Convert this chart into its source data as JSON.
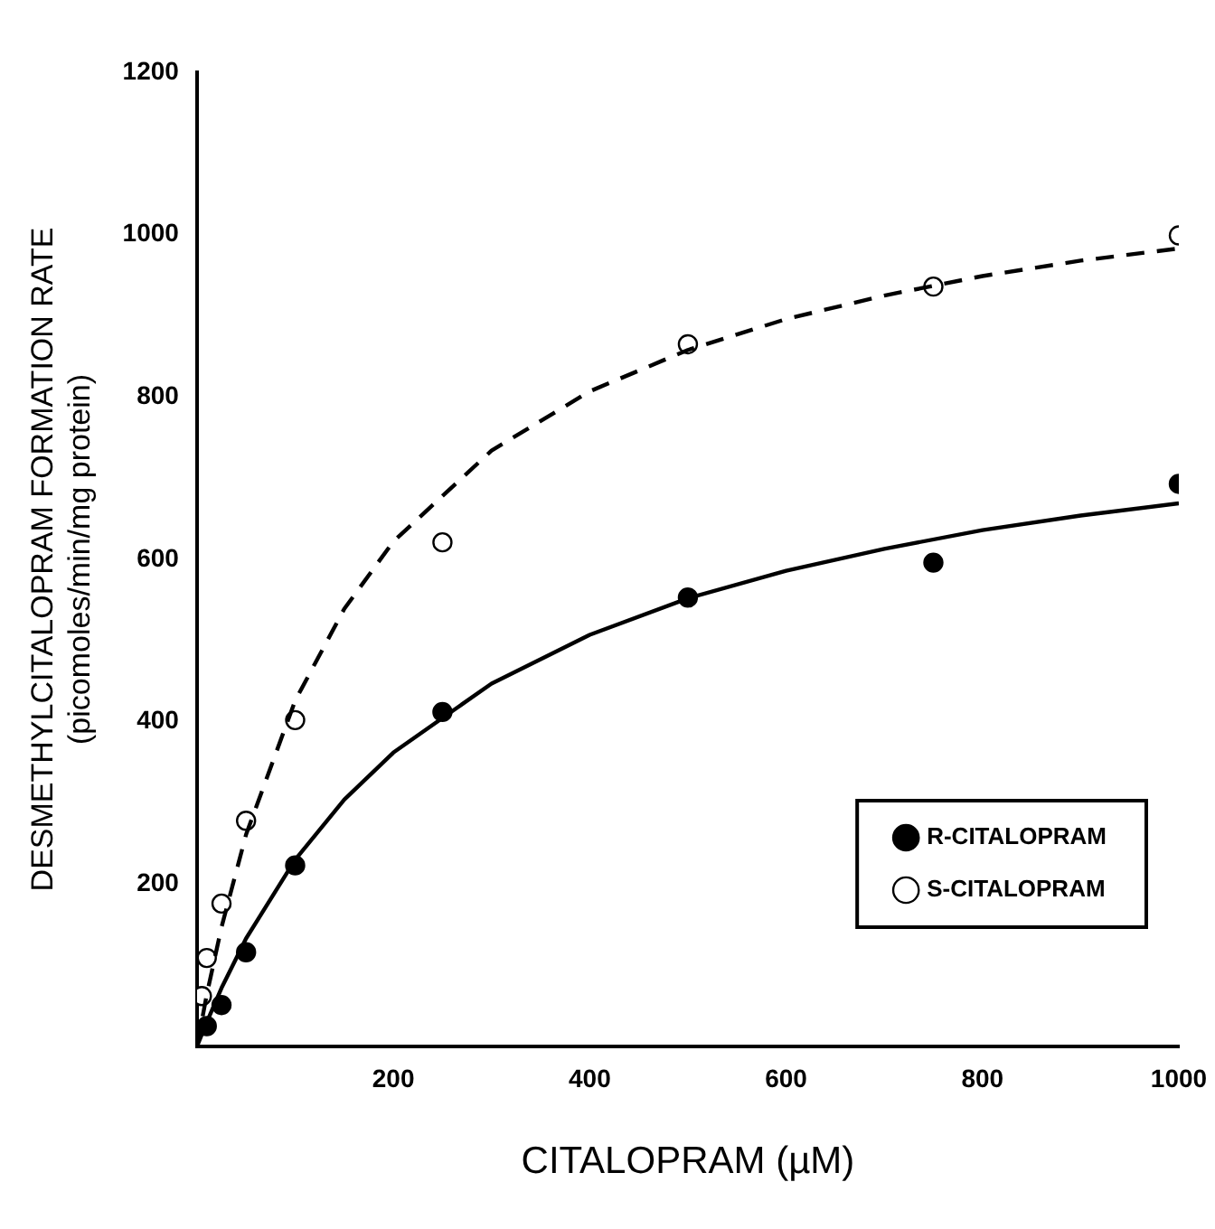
{
  "chart_data": {
    "type": "scatter",
    "xlabel": "CITALOPRAM (µM)",
    "ylabel": "DESMETHYLCITALOPRAM FORMATION RATE\n(picomoles/min/mg protein)",
    "xlim": [
      0,
      1000
    ],
    "xticks": [
      200,
      400,
      600,
      800,
      1000
    ],
    "ylim": [
      0,
      1200
    ],
    "yticks": [
      200,
      400,
      600,
      800,
      1000,
      1200
    ],
    "grid": false,
    "legend": "bottom right",
    "series": [
      {
        "name": "R-CITALOPRAM",
        "type": "scatter",
        "marker": "circle",
        "color": "#000000",
        "x": [
          10,
          25,
          50,
          100,
          250,
          500,
          750,
          1000
        ],
        "values": [
          25,
          51,
          116,
          223,
          412,
          553,
          596,
          693
        ]
      },
      {
        "name": "S-CITALOPRAM",
        "type": "scatter",
        "marker": "circle",
        "color": "#ffffff",
        "x": [
          5,
          10,
          25,
          50,
          100,
          250,
          500,
          750,
          1000
        ],
        "values": [
          62,
          109,
          176,
          278,
          402,
          621,
          865,
          936,
          999
        ]
      },
      {
        "type": "line",
        "marker": "none",
        "line_style": "solid",
        "color": "#000000",
        "x": [
          0,
          10,
          25,
          50,
          100,
          150,
          200,
          300,
          400,
          500,
          600,
          700,
          800,
          900,
          1000
        ],
        "values": [
          0,
          30,
          72,
          133,
          230,
          304,
          362,
          447,
          507,
          552,
          586,
          613,
          636,
          654,
          669
        ]
      },
      {
        "type": "line",
        "marker": "none",
        "line_style": "dashed",
        "color": "#000000",
        "x": [
          0,
          10,
          25,
          50,
          100,
          150,
          200,
          300,
          400,
          500,
          600,
          700,
          800,
          900,
          1000
        ],
        "values": [
          0,
          64,
          147,
          261,
          426,
          539,
          622,
          734,
          807,
          858,
          896,
          925,
          949,
          968,
          983
        ]
      }
    ]
  }
}
